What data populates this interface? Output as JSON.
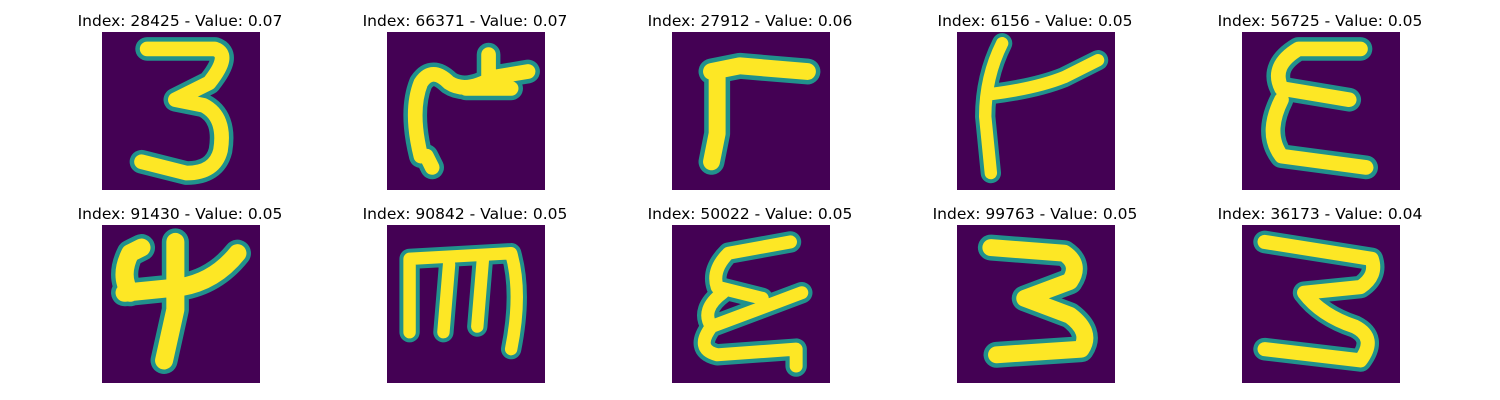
{
  "colors": {
    "background": "#440154",
    "stroke": "#fde725",
    "edge": "#21918c",
    "mid": "#5ec962"
  },
  "panels": [
    {
      "title": "Index: 28425 - Value: 0.07",
      "glyph": "digit-3-icon"
    },
    {
      "title": "Index: 66371 - Value: 0.07",
      "glyph": "hooked-stroke-icon"
    },
    {
      "title": "Index: 27912 - Value: 0.06",
      "glyph": "gamma-stroke-icon"
    },
    {
      "title": "Index: 6156 - Value: 0.05",
      "glyph": "k-like-stroke-icon"
    },
    {
      "title": "Index: 56725 - Value: 0.05",
      "glyph": "epsilon-stroke-icon"
    },
    {
      "title": "Index: 91430 - Value: 0.05",
      "glyph": "digit-4-icon"
    },
    {
      "title": "Index: 90842 - Value: 0.05",
      "glyph": "m-rotated-stroke-icon"
    },
    {
      "title": "Index: 50022 - Value: 0.05",
      "glyph": "curly-e-stroke-icon"
    },
    {
      "title": "Index: 99763 - Value: 0.05",
      "glyph": "digit-3-angular-icon"
    },
    {
      "title": "Index: 36173 - Value: 0.04",
      "glyph": "digit-3-slanted-icon"
    }
  ]
}
